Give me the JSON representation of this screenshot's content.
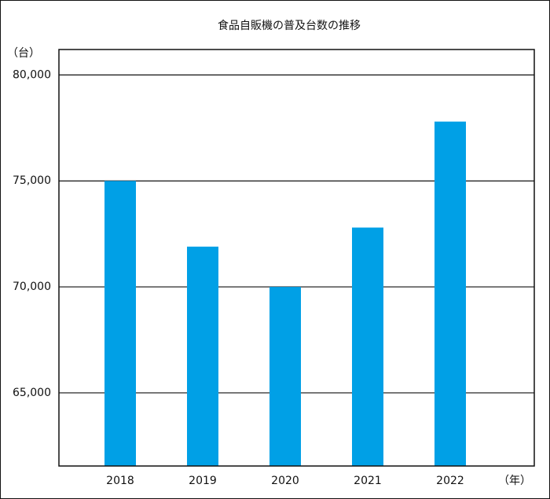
{
  "chart_data": {
    "type": "bar",
    "title": "食品自販機の普及台数の推移",
    "y_label": "（台）",
    "x_label": "（年）",
    "categories": [
      "2018",
      "2019",
      "2020",
      "2021",
      "2022"
    ],
    "values": [
      75000,
      71900,
      70000,
      72800,
      77800
    ],
    "color": "#00a0e6",
    "ylim": [
      61550,
      81200
    ],
    "yticks": [
      {
        "value": 65000,
        "label": "65,000"
      },
      {
        "value": 70000,
        "label": "70,000"
      },
      {
        "value": 75000,
        "label": "75,000"
      },
      {
        "value": 80000,
        "label": "80,000"
      }
    ],
    "grid": true
  }
}
